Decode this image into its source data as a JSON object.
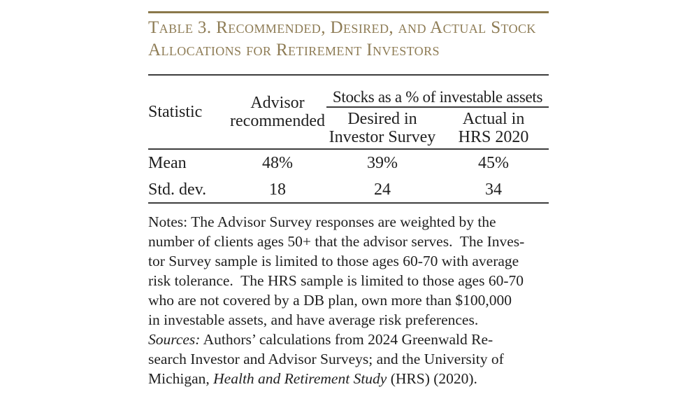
{
  "colors": {
    "accent_gold_rule": "#8a784a",
    "title_text": "#8e7c55",
    "table_rule": "#3d3d3d",
    "body_text": "#1f1f1f",
    "background": "#ffffff"
  },
  "title": {
    "line1": "Table 3. Recommended, Desired, and Actual Stock",
    "line2": "Allocations for Retirement Investors"
  },
  "table": {
    "columns": {
      "statistic": "Statistic",
      "advisor_line1": "Advisor",
      "advisor_line2": "recommended",
      "span_header": "Stocks as a % of investable assets",
      "desired_line1": "Desired in",
      "desired_line2": "Investor Survey",
      "actual_line1": "Actual in",
      "actual_line2": "HRS 2020"
    },
    "rows": [
      {
        "statistic": "Mean",
        "advisor": "48%",
        "desired": "39%",
        "actual": "45%"
      },
      {
        "statistic": "Std. dev.",
        "advisor": "18",
        "desired": "24",
        "actual": "34"
      }
    ]
  },
  "notes": {
    "line1": "Notes: The Advisor Survey responses are weighted by the",
    "line2": "number of clients ages 50+ that the advisor serves.  The Inves-",
    "line3": "tor Survey sample is limited to those ages 60-70 with average",
    "line4": "risk tolerance.  The HRS sample is limited to those ages 60-70",
    "line5": "who are not covered by a DB plan, own more than $100,000",
    "line6": "in investable assets, and have average risk preferences.",
    "line7_italic": "Sources:",
    "line7_rest": " Authors’ calculations from 2024 Greenwald Re-",
    "line8": "search Investor and Advisor Surveys; and the University of",
    "line9_pre": "Michigan, ",
    "line9_italic": "Health and Retirement Study",
    "line9_post": " (HRS) (2020)."
  }
}
